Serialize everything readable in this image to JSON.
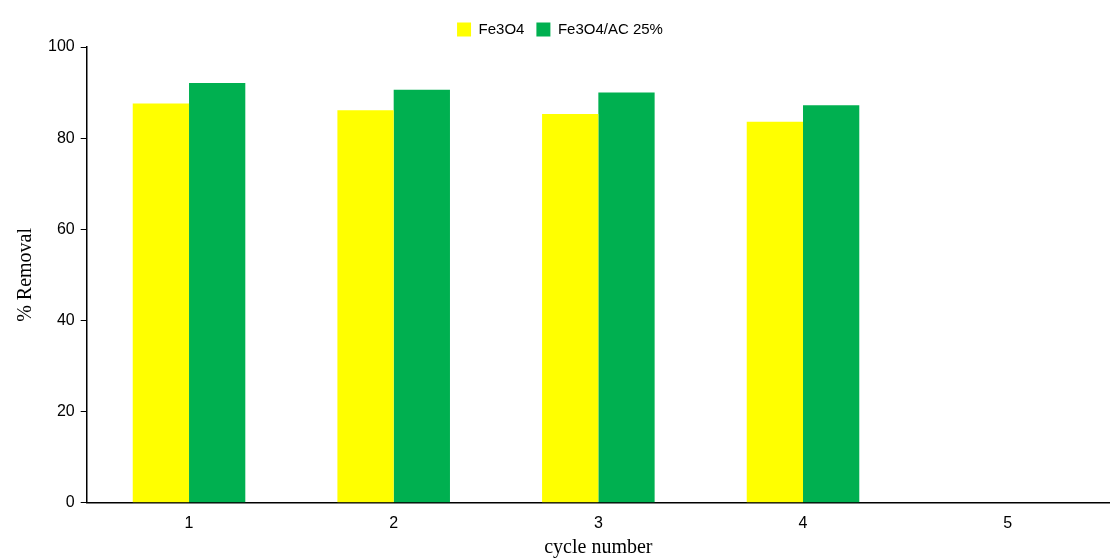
{
  "chart_data": {
    "type": "bar",
    "xlabel": "cycle number",
    "ylabel": "% Removal",
    "categories": [
      "1",
      "2",
      "3",
      "4",
      "5"
    ],
    "series": [
      {
        "name": "Fe3O4",
        "color": "#ffff00",
        "values": [
          87.6,
          86.1,
          85.3,
          83.6,
          null
        ]
      },
      {
        "name": "Fe3O4/AC 25%",
        "color": "#00b050",
        "values": [
          92.1,
          90.6,
          90.0,
          87.2,
          null
        ]
      }
    ],
    "ylim": [
      0,
      100
    ],
    "yticks": [
      0,
      20,
      40,
      60,
      80,
      100
    ],
    "grid": false,
    "legend": "top"
  }
}
